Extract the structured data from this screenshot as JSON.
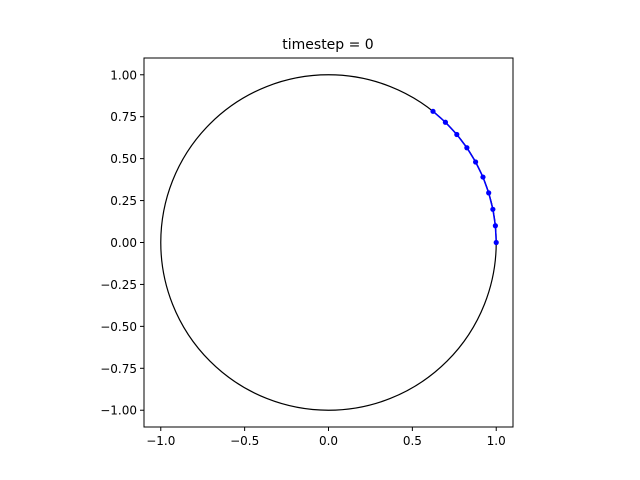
{
  "chart_data": {
    "type": "scatter",
    "title": "timestep = 0",
    "xlabel": "",
    "ylabel": "",
    "xlim": [
      -1.1,
      1.1
    ],
    "ylim": [
      -1.1,
      1.1
    ],
    "xticks": [
      -1.0,
      -0.5,
      0.0,
      0.5,
      1.0
    ],
    "xtick_labels": [
      "−1.0",
      "−0.5",
      "0.0",
      "0.5",
      "1.0"
    ],
    "yticks": [
      1.0,
      0.75,
      0.5,
      0.25,
      0.0,
      -0.25,
      -0.5,
      -0.75,
      -1.0
    ],
    "ytick_labels": [
      "1.00",
      "0.75",
      "0.50",
      "0.25",
      "0.00",
      "−0.25",
      "−0.50",
      "−0.75",
      "−1.00"
    ],
    "grid": false,
    "legend": "none",
    "circle": {
      "center": [
        0,
        0
      ],
      "radius": 1.0,
      "color": "#000000"
    },
    "series": [
      {
        "color": "#0000ff",
        "marker": "dot",
        "line": true,
        "points": [
          [
            1.0,
            0.0
          ],
          [
            0.995,
            0.1
          ],
          [
            0.98,
            0.198
          ],
          [
            0.955,
            0.296
          ],
          [
            0.921,
            0.39
          ],
          [
            0.877,
            0.48
          ],
          [
            0.825,
            0.565
          ],
          [
            0.765,
            0.644
          ],
          [
            0.697,
            0.717
          ],
          [
            0.623,
            0.782
          ]
        ]
      }
    ]
  }
}
